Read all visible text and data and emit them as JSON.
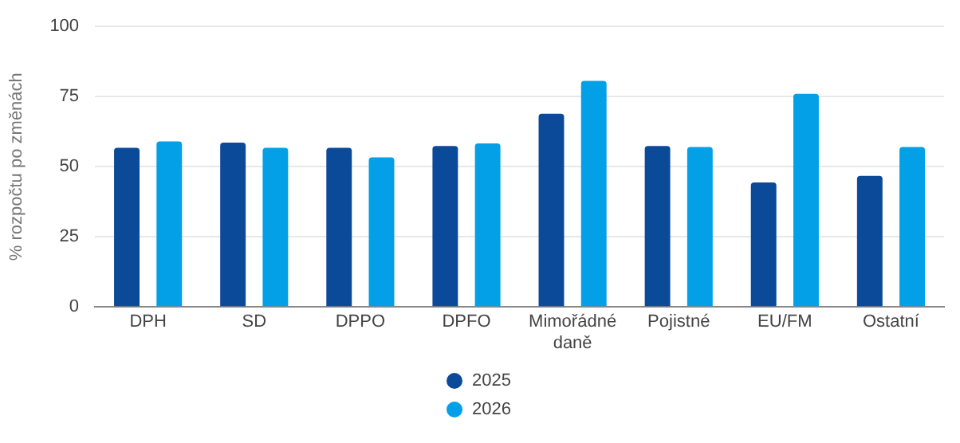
{
  "chart_data": {
    "type": "bar",
    "ylabel": "% rozpočtu po změnách",
    "categories": [
      "DPH",
      "SD",
      "DPPO",
      "DPFO",
      "Mimořádné daně",
      "Pojistné",
      "EU/FM",
      "Ostatní"
    ],
    "series": [
      {
        "name": "2025",
        "color": "#0b4a99",
        "values": [
          56.7,
          58.6,
          56.7,
          57.4,
          68.9,
          57.4,
          44.4,
          46.7
        ]
      },
      {
        "name": "2026",
        "color": "#03a0e8",
        "values": [
          59.0,
          56.7,
          53.3,
          58.3,
          80.6,
          57.0,
          76.0,
          57.0
        ]
      }
    ],
    "ylim": [
      0,
      100
    ],
    "yticks": [
      0,
      25,
      50,
      75,
      100
    ],
    "grid": "y",
    "legend": "bottom"
  }
}
